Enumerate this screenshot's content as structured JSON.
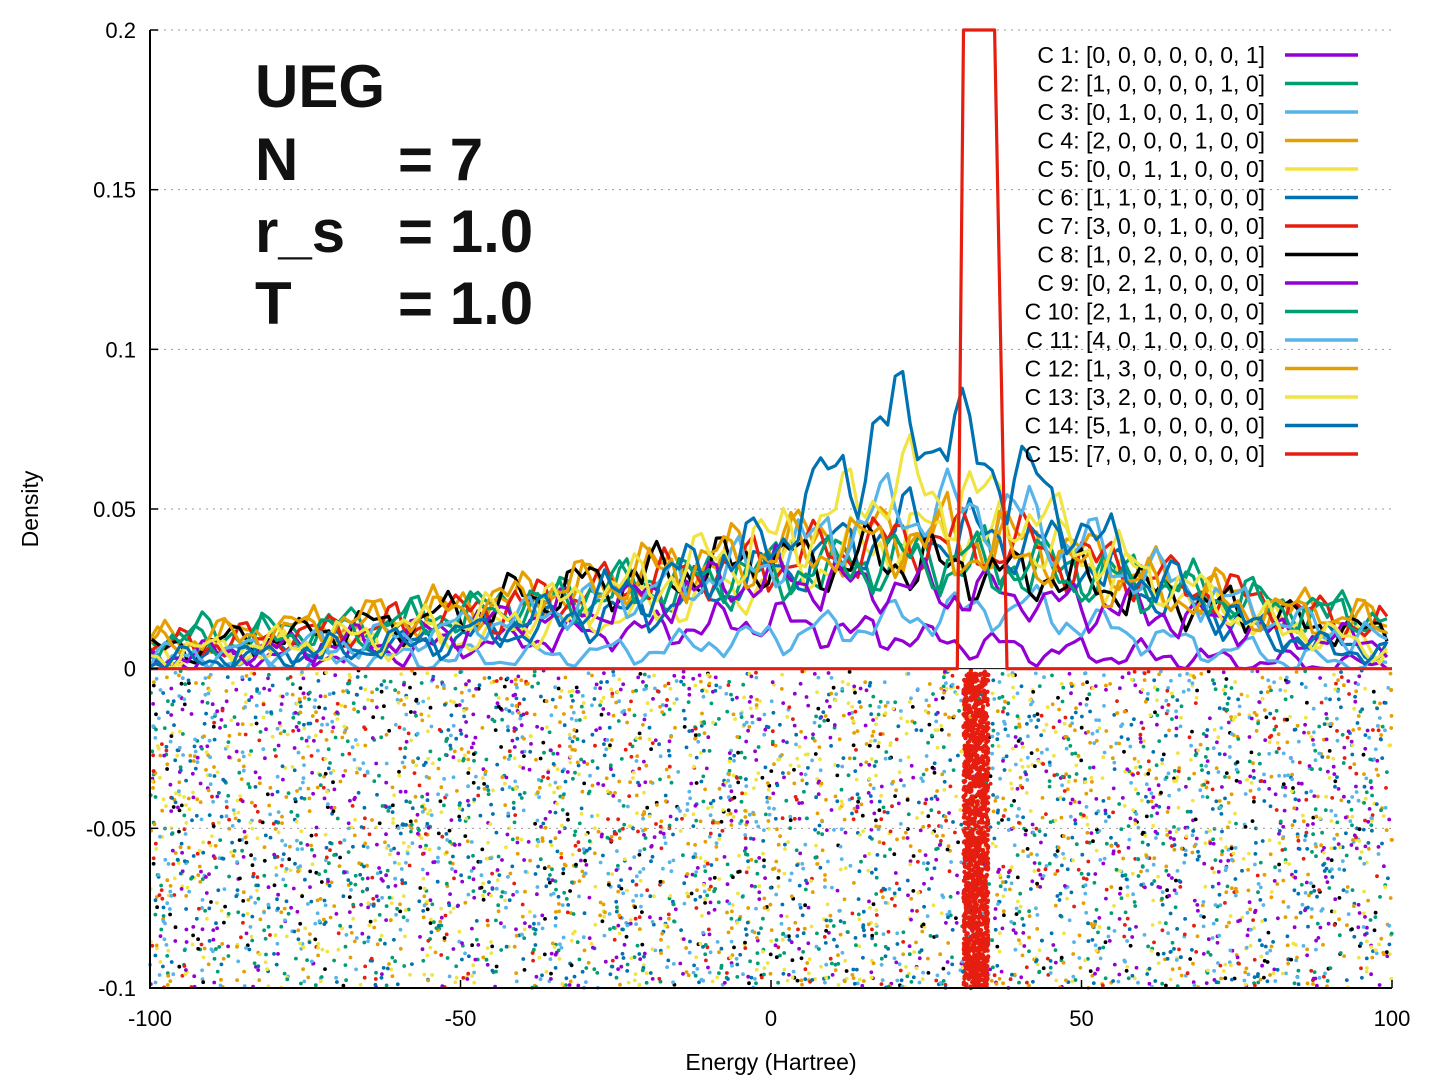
{
  "chart_data": {
    "type": "line",
    "xlabel": "Energy (Hartree)",
    "ylabel": "Density",
    "xlim": [
      -100,
      100
    ],
    "ylim": [
      -0.1,
      0.2
    ],
    "x_ticks": [
      "-100",
      "-50",
      "0",
      "50",
      "100"
    ],
    "y_ticks": [
      "-0.1",
      "-0.05",
      "0",
      "0.05",
      "0.1",
      "0.15",
      "0.2"
    ],
    "grid": "dotted horizontal",
    "legend_position": "top-right",
    "annotation": {
      "title": "UEG",
      "rows": [
        {
          "key": "N",
          "value": "= 7"
        },
        {
          "key": "r_s",
          "value": "= 1.0"
        },
        {
          "key": "T",
          "value": "= 1.0"
        }
      ]
    },
    "scatter_band": {
      "y_range": [
        -0.1,
        0
      ],
      "description": "per-sample points below zero line"
    },
    "series": [
      {
        "name": "C 1: [0, 0, 0, 0, 0, 0, 1]",
        "color": "#9400d3",
        "x": [
          -100,
          -80,
          -60,
          -40,
          -20,
          0,
          20,
          40,
          60,
          80,
          100
        ],
        "values": [
          0.002,
          0.004,
          0.006,
          0.009,
          0.012,
          0.015,
          0.01,
          0.006,
          0.004,
          0.002,
          0.001
        ]
      },
      {
        "name": "C 2: [1, 0, 0, 0, 0, 1, 0]",
        "color": "#009e73",
        "x": [
          -100,
          -80,
          -60,
          -40,
          -20,
          0,
          20,
          40,
          60,
          80,
          100
        ],
        "values": [
          0.01,
          0.012,
          0.015,
          0.02,
          0.026,
          0.03,
          0.034,
          0.032,
          0.028,
          0.02,
          0.014
        ]
      },
      {
        "name": "C 3: [0, 1, 0, 0, 1, 0, 0]",
        "color": "#56b4e9",
        "x": [
          -100,
          -80,
          -60,
          -40,
          -20,
          0,
          20,
          40,
          60,
          80,
          100
        ],
        "values": [
          0.001,
          0.002,
          0.003,
          0.004,
          0.006,
          0.01,
          0.015,
          0.02,
          0.01,
          0.004,
          0.001
        ]
      },
      {
        "name": "C 4: [2, 0, 0, 0, 1, 0, 0]",
        "color": "#e69f00",
        "x": [
          -100,
          -80,
          -60,
          -40,
          -20,
          0,
          20,
          40,
          60,
          80,
          100
        ],
        "values": [
          0.008,
          0.012,
          0.016,
          0.022,
          0.03,
          0.038,
          0.044,
          0.04,
          0.03,
          0.02,
          0.014
        ]
      },
      {
        "name": "C 5: [0, 0, 1, 1, 0, 0, 0]",
        "color": "#f0e442",
        "x": [
          -100,
          -80,
          -60,
          -40,
          -20,
          0,
          20,
          40,
          60,
          80,
          100
        ],
        "values": [
          0.004,
          0.006,
          0.008,
          0.012,
          0.018,
          0.028,
          0.042,
          0.04,
          0.028,
          0.014,
          0.006
        ]
      },
      {
        "name": "C 6: [1, 1, 0, 1, 0, 0, 0]",
        "color": "#0072b2",
        "x": [
          -100,
          -80,
          -60,
          -40,
          -20,
          0,
          20,
          40,
          60,
          80,
          100
        ],
        "values": [
          0.003,
          0.005,
          0.008,
          0.012,
          0.018,
          0.03,
          0.045,
          0.04,
          0.025,
          0.012,
          0.005
        ]
      },
      {
        "name": "C 7: [3, 0, 0, 1, 0, 0, 0]",
        "color": "#e51e10",
        "x": [
          -100,
          -80,
          -60,
          -40,
          -20,
          0,
          20,
          40,
          60,
          80,
          100
        ],
        "values": [
          0.006,
          0.01,
          0.014,
          0.02,
          0.028,
          0.034,
          0.04,
          0.038,
          0.03,
          0.02,
          0.012
        ]
      },
      {
        "name": "C 8: [1, 0, 2, 0, 0, 0, 0]",
        "color": "#000000",
        "x": [
          -100,
          -80,
          -60,
          -40,
          -20,
          0,
          20,
          40,
          60,
          80,
          100
        ],
        "values": [
          0.006,
          0.01,
          0.014,
          0.022,
          0.03,
          0.034,
          0.034,
          0.03,
          0.024,
          0.016,
          0.01
        ]
      },
      {
        "name": "C 9: [0, 2, 1, 0, 0, 0, 0]",
        "color": "#9400d3",
        "x": [
          -100,
          -80,
          -60,
          -40,
          -20,
          0,
          20,
          40,
          60,
          80,
          100
        ],
        "values": [
          0.004,
          0.006,
          0.01,
          0.016,
          0.022,
          0.028,
          0.026,
          0.022,
          0.018,
          0.012,
          0.008
        ]
      },
      {
        "name": "C 10: [2, 1, 1, 0, 0, 0, 0]",
        "color": "#009e73",
        "x": [
          -100,
          -80,
          -60,
          -40,
          -20,
          0,
          20,
          40,
          60,
          80,
          100
        ],
        "values": [
          0.008,
          0.01,
          0.014,
          0.02,
          0.026,
          0.03,
          0.034,
          0.032,
          0.026,
          0.02,
          0.016
        ]
      },
      {
        "name": "C 11: [4, 0, 1, 0, 0, 0, 0]",
        "color": "#56b4e9",
        "x": [
          -100,
          -80,
          -60,
          -40,
          -20,
          0,
          20,
          40,
          60,
          80,
          100
        ],
        "values": [
          0.004,
          0.006,
          0.01,
          0.016,
          0.024,
          0.034,
          0.05,
          0.048,
          0.03,
          0.016,
          0.008
        ]
      },
      {
        "name": "C 12: [1, 3, 0, 0, 0, 0, 0]",
        "color": "#e69f00",
        "x": [
          -100,
          -80,
          -60,
          -40,
          -20,
          0,
          20,
          40,
          60,
          80,
          100
        ],
        "values": [
          0.008,
          0.012,
          0.016,
          0.022,
          0.03,
          0.036,
          0.04,
          0.036,
          0.026,
          0.018,
          0.014
        ]
      },
      {
        "name": "C 13: [3, 2, 0, 0, 0, 0, 0]",
        "color": "#f0e442",
        "x": [
          -100,
          -80,
          -60,
          -40,
          -20,
          0,
          20,
          40,
          60,
          80,
          100
        ],
        "values": [
          0.004,
          0.008,
          0.012,
          0.018,
          0.028,
          0.04,
          0.058,
          0.05,
          0.03,
          0.014,
          0.006
        ]
      },
      {
        "name": "C 14: [5, 1, 0, 0, 0, 0, 0]",
        "color": "#0072b2",
        "x": [
          -100,
          -80,
          -60,
          -40,
          -20,
          0,
          20,
          40,
          60,
          80,
          100
        ],
        "values": [
          0.002,
          0.004,
          0.008,
          0.014,
          0.026,
          0.04,
          0.08,
          0.06,
          0.03,
          0.01,
          0.004
        ]
      },
      {
        "name": "C 15: [7, 0, 0, 0, 0, 0, 0]",
        "color": "#e51e10",
        "x": [
          -100,
          -80,
          -60,
          -40,
          -20,
          0,
          20,
          25,
          28,
          30,
          31,
          32,
          33,
          34,
          35,
          36,
          38,
          40,
          60,
          80,
          100
        ],
        "values": [
          0,
          0,
          0,
          0,
          0,
          0,
          0,
          0,
          0,
          0,
          0.2,
          0.2,
          0.2,
          0.2,
          0.2,
          0.2,
          0.0,
          0,
          0,
          0,
          0
        ]
      }
    ]
  }
}
